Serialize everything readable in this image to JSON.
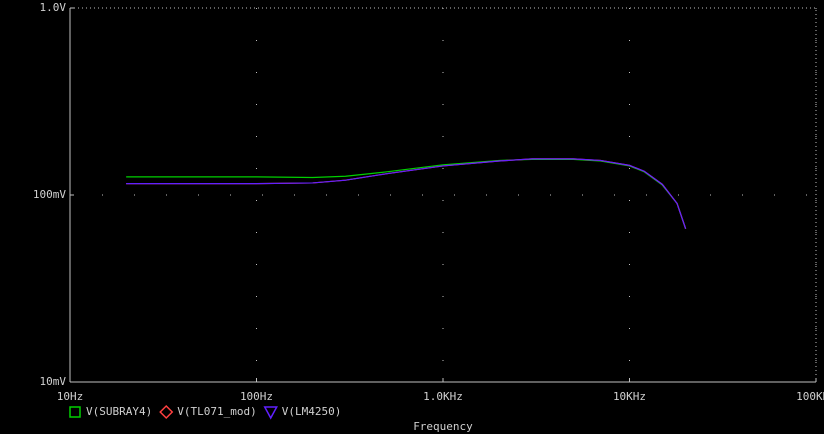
{
  "chart_data": {
    "type": "line",
    "xlabel": "Frequency",
    "x": [
      20,
      50,
      100,
      200,
      300,
      500,
      1000,
      2000,
      3000,
      5000,
      7000,
      10000,
      12000,
      15000,
      18000,
      20000
    ],
    "series": [
      {
        "name": "V(SUBRAY4)",
        "color": "#00d000",
        "marker": "square",
        "values": [
          0.125,
          0.125,
          0.125,
          0.124,
          0.126,
          0.133,
          0.145,
          0.153,
          0.155,
          0.155,
          0.152,
          0.143,
          0.133,
          0.113,
          0.09,
          0.066
        ]
      },
      {
        "name": "V(TL071_mod)",
        "color": "#ff4040",
        "marker": "diamond",
        "values": [
          0.115,
          0.115,
          0.115,
          0.116,
          0.12,
          0.13,
          0.143,
          0.152,
          0.156,
          0.156,
          0.153,
          0.144,
          0.134,
          0.114,
          0.09,
          0.066
        ]
      },
      {
        "name": "V(LM4250)",
        "color": "#6020ff",
        "marker": "triangle",
        "values": [
          0.115,
          0.115,
          0.115,
          0.116,
          0.12,
          0.13,
          0.143,
          0.152,
          0.156,
          0.156,
          0.153,
          0.144,
          0.134,
          0.114,
          0.09,
          0.066
        ]
      }
    ],
    "xscale": "log",
    "yscale": "log",
    "xlim": [
      10,
      100000
    ],
    "xticks": [
      {
        "value": 10,
        "label": "10Hz"
      },
      {
        "value": 100,
        "label": "100Hz"
      },
      {
        "value": 1000,
        "label": "1.0KHz"
      },
      {
        "value": 10000,
        "label": "10KHz"
      },
      {
        "value": 100000,
        "label": "100KHz"
      }
    ],
    "ylim": [
      0.01,
      1
    ],
    "yticks": [
      {
        "value": 0.01,
        "label": "10mV"
      },
      {
        "value": 0.1,
        "label": "100mV"
      },
      {
        "value": 1,
        "label": "1.0V"
      }
    ],
    "grid": true
  }
}
